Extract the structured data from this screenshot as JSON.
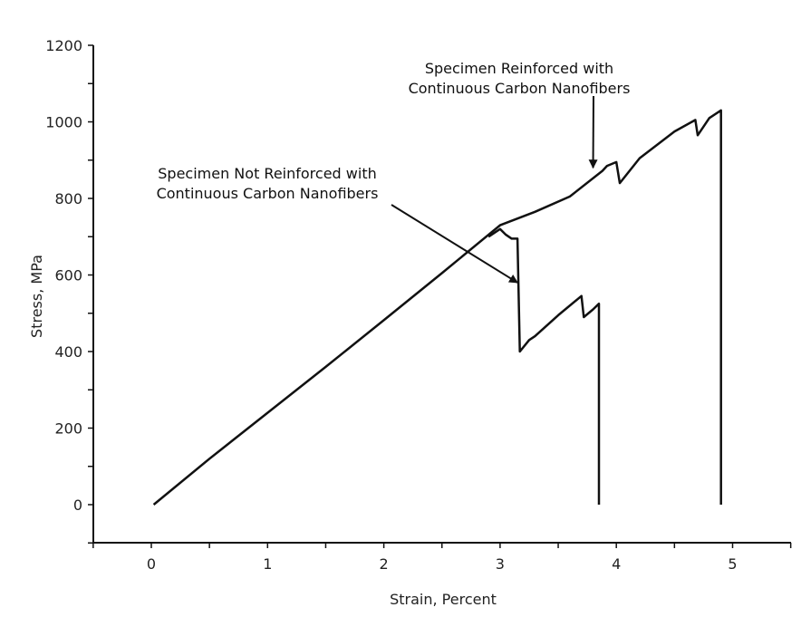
{
  "chart_data": {
    "type": "line",
    "title": "",
    "xlabel": "Strain, Percent",
    "ylabel": "Stress, MPa",
    "xlim": [
      -0.5,
      5.5
    ],
    "ylim": [
      -100,
      1200
    ],
    "x_ticks": [
      0,
      1,
      2,
      3,
      4,
      5
    ],
    "y_ticks": [
      0,
      200,
      400,
      600,
      800,
      1000,
      1200
    ],
    "x_tick_labels": [
      "0",
      "1",
      "2",
      "3",
      "4",
      "5"
    ],
    "y_tick_labels": [
      "0",
      "200",
      "400",
      "600",
      "800",
      "1000",
      "1200"
    ],
    "grid": false,
    "legend": "none",
    "line_color": "#111111",
    "series": [
      {
        "points": [
          [
            0.02,
            0
          ],
          [
            0.5,
            120
          ],
          [
            1.0,
            240
          ],
          [
            1.5,
            360
          ],
          [
            2.0,
            482
          ],
          [
            2.5,
            605
          ],
          [
            3.0,
            730
          ],
          [
            3.3,
            765
          ],
          [
            3.6,
            805
          ],
          [
            3.88,
            872
          ],
          [
            3.92,
            885
          ],
          [
            4.0,
            895
          ],
          [
            4.03,
            840
          ],
          [
            4.2,
            905
          ],
          [
            4.5,
            975
          ],
          [
            4.65,
            1000
          ],
          [
            4.68,
            1005
          ],
          [
            4.7,
            965
          ],
          [
            4.8,
            1010
          ],
          [
            4.9,
            1030
          ],
          [
            4.9,
            0
          ]
        ]
      },
      {
        "points": [
          [
            2.9,
            700
          ],
          [
            3.0,
            720
          ],
          [
            3.05,
            705
          ],
          [
            3.1,
            695
          ],
          [
            3.15,
            695
          ],
          [
            3.17,
            400
          ],
          [
            3.25,
            430
          ],
          [
            3.3,
            440
          ],
          [
            3.5,
            495
          ],
          [
            3.7,
            545
          ],
          [
            3.72,
            490
          ],
          [
            3.8,
            510
          ],
          [
            3.85,
            525
          ],
          [
            3.85,
            0
          ]
        ]
      }
    ],
    "annotations": [
      {
        "lines": [
          "Specimen Reinforced with",
          "Continuous Carbon Nanofibers"
        ],
        "arrow_to": [
          3.8,
          880
        ]
      },
      {
        "lines": [
          "Specimen Not Reinforced with",
          "Continuous Carbon Nanofibers"
        ],
        "arrow_to": [
          3.15,
          580
        ]
      }
    ]
  }
}
